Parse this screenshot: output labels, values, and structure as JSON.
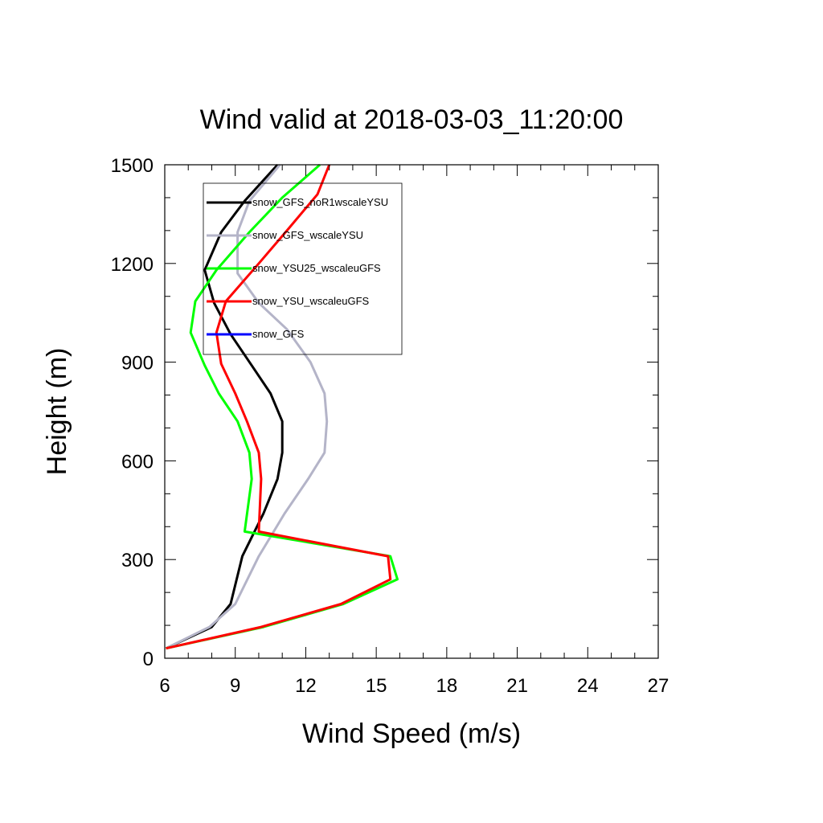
{
  "chart_data": {
    "type": "line",
    "title": "Wind valid at 2018-03-03_11:20:00",
    "xlabel": "Wind Speed (m/s)",
    "ylabel": "Height (m)",
    "xlim": [
      6,
      27
    ],
    "ylim": [
      0,
      1500
    ],
    "xticks": [
      "6",
      "9",
      "12",
      "15",
      "18",
      "21",
      "24",
      "27"
    ],
    "yticks": [
      "0",
      "300",
      "600",
      "900",
      "1200",
      "1500"
    ],
    "legend_position": "top-left",
    "grid": false,
    "series": [
      {
        "name": "snow_GFS_noR1wscaleYSU",
        "color": "#000000",
        "points": [
          [
            6.05,
            30
          ],
          [
            8.0,
            95
          ],
          [
            8.8,
            165
          ],
          [
            9.3,
            310
          ],
          [
            10.2,
            440
          ],
          [
            10.8,
            545
          ],
          [
            11.0,
            625
          ],
          [
            11.0,
            720
          ],
          [
            10.5,
            805
          ],
          [
            9.7,
            890
          ],
          [
            8.8,
            985
          ],
          [
            8.1,
            1080
          ],
          [
            7.7,
            1180
          ],
          [
            8.4,
            1295
          ],
          [
            9.4,
            1390
          ],
          [
            10.8,
            1500
          ]
        ]
      },
      {
        "name": "snow_GFS_wscaleYSU",
        "color": "#b4b4c8",
        "points": [
          [
            6.05,
            30
          ],
          [
            7.9,
            95
          ],
          [
            9.0,
            165
          ],
          [
            10.0,
            310
          ],
          [
            11.1,
            440
          ],
          [
            12.1,
            545
          ],
          [
            12.8,
            625
          ],
          [
            12.9,
            720
          ],
          [
            12.8,
            805
          ],
          [
            12.2,
            900
          ],
          [
            11.2,
            1000
          ],
          [
            10.0,
            1080
          ],
          [
            9.1,
            1170
          ],
          [
            9.1,
            1295
          ],
          [
            9.6,
            1390
          ],
          [
            10.9,
            1500
          ]
        ]
      },
      {
        "name": "snow_YSU25_wscaleuGFS",
        "color": "#00ff00",
        "points": [
          [
            6.05,
            30
          ],
          [
            10.2,
            95
          ],
          [
            13.6,
            165
          ],
          [
            15.9,
            240
          ],
          [
            15.6,
            310
          ],
          [
            9.4,
            385
          ],
          [
            9.7,
            545
          ],
          [
            9.6,
            625
          ],
          [
            9.1,
            720
          ],
          [
            8.3,
            805
          ],
          [
            7.7,
            890
          ],
          [
            7.1,
            990
          ],
          [
            7.3,
            1085
          ],
          [
            8.2,
            1180
          ],
          [
            9.6,
            1295
          ],
          [
            11.0,
            1400
          ],
          [
            12.6,
            1500
          ]
        ]
      },
      {
        "name": "snow_YSU_wscaleuGFS",
        "color": "#ff0000",
        "points": [
          [
            6.05,
            30
          ],
          [
            10.1,
            95
          ],
          [
            13.5,
            165
          ],
          [
            15.6,
            240
          ],
          [
            15.5,
            310
          ],
          [
            10.0,
            385
          ],
          [
            10.1,
            545
          ],
          [
            10.0,
            625
          ],
          [
            9.5,
            720
          ],
          [
            9.0,
            805
          ],
          [
            8.4,
            895
          ],
          [
            8.2,
            990
          ],
          [
            8.6,
            1085
          ],
          [
            10.0,
            1200
          ],
          [
            11.2,
            1300
          ],
          [
            12.5,
            1410
          ],
          [
            13.0,
            1500
          ]
        ]
      },
      {
        "name": "snow_GFS",
        "color": "#0000ff",
        "points": []
      }
    ]
  }
}
